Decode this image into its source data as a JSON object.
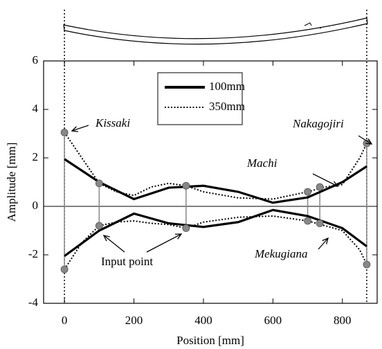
{
  "chart_data": {
    "type": "line",
    "xlabel": "Position [mm]",
    "ylabel": "Amplitude [mm]",
    "xlim": [
      -60,
      900
    ],
    "ylim": [
      -4,
      6
    ],
    "xticks": [
      0,
      200,
      400,
      600,
      800
    ],
    "yticks": [
      -4,
      -2,
      0,
      2,
      4,
      6
    ],
    "series": [
      {
        "name": "100mm",
        "color": "#000000",
        "style": "solid",
        "x": [
          0,
          100,
          200,
          300,
          400,
          500,
          600,
          700,
          800,
          870
        ],
        "values": [
          1.95,
          1.0,
          0.3,
          0.77,
          0.85,
          0.6,
          0.15,
          0.37,
          1.0,
          1.65
        ],
        "lower": [
          -2.05,
          -1.0,
          -0.3,
          -0.7,
          -0.85,
          -0.65,
          -0.15,
          -0.4,
          -0.9,
          -1.65
        ]
      },
      {
        "name": "350mm",
        "color": "#000000",
        "style": "dotted",
        "x": [
          0,
          50,
          100,
          150,
          200,
          250,
          300,
          350,
          400,
          500,
          600,
          700,
          750,
          800,
          850,
          870
        ],
        "values": [
          3.05,
          2.0,
          0.95,
          0.6,
          0.45,
          0.8,
          0.95,
          0.85,
          0.6,
          0.35,
          0.3,
          0.6,
          0.8,
          0.9,
          2.0,
          2.6
        ],
        "lower": [
          -2.6,
          -1.5,
          -0.8,
          -0.65,
          -0.6,
          -0.7,
          -0.75,
          -0.9,
          -0.65,
          -0.45,
          -0.4,
          -0.6,
          -0.8,
          -1.0,
          -1.8,
          -2.4
        ]
      }
    ],
    "input_points": {
      "color": "#888888",
      "x": [
        0,
        100,
        350,
        700,
        735,
        870
      ],
      "upper": [
        3.05,
        0.95,
        0.85,
        0.6,
        0.8,
        2.6
      ],
      "lower": [
        -2.6,
        -0.8,
        -0.9,
        -0.6,
        -0.7,
        -2.4
      ]
    },
    "annotations": [
      "Kissaki",
      "Nakagojiri",
      "Machi",
      "Mekugiana",
      "Input point"
    ]
  }
}
